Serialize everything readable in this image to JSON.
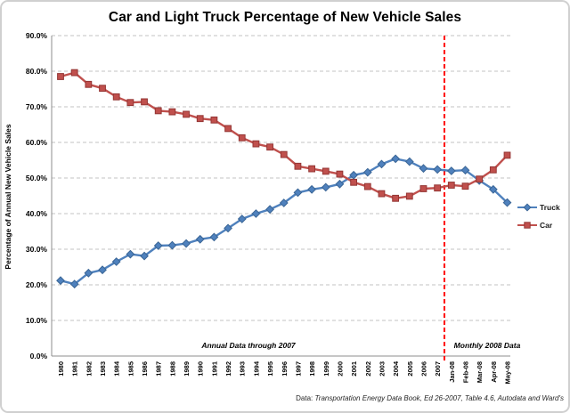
{
  "chart_title": "Car and Light Truck Percentage of New Vehicle Sales",
  "y_axis_title": "Percentage of Annual New Vehicle Sales",
  "annotations": {
    "annual": "Annual Data through 2007",
    "monthly": "Monthly 2008 Data"
  },
  "footer": {
    "prefix": "Data:",
    "source": "Transportation Energy Data Book, Ed 26-2007, Table 4.6,  Autodata and Ward's"
  },
  "colors": {
    "truck": "#4F81BD",
    "truck_border": "#3A6595",
    "car": "#C0504D",
    "car_border": "#943634",
    "separator": "#FF0000",
    "gridline": "#C3C3C3",
    "axis": "#8C8C8C",
    "text": "#000000"
  },
  "chart_data": {
    "type": "line",
    "title": "Car and Light Truck Percentage of New Vehicle Sales",
    "xlabel": "",
    "ylabel": "Percentage of Annual New Vehicle Sales",
    "ylim": [
      0,
      90
    ],
    "y_tick_labels": [
      "0.0%",
      "10.0%",
      "20.0%",
      "30.0%",
      "40.0%",
      "50.0%",
      "60.0%",
      "70.0%",
      "80.0%",
      "90.0%"
    ],
    "grid": "horizontal-dashed",
    "legend_position": "right-middle",
    "separator_after_category": "2007",
    "annotations": [
      "Annual Data through 2007",
      "Monthly 2008 Data"
    ],
    "categories": [
      "1980",
      "1981",
      "1982",
      "1983",
      "1984",
      "1985",
      "1986",
      "1987",
      "1988",
      "1989",
      "1990",
      "1991",
      "1992",
      "1993",
      "1994",
      "1995",
      "1996",
      "1997",
      "1998",
      "1999",
      "2000",
      "2001",
      "2002",
      "2003",
      "2004",
      "2005",
      "2006",
      "2007",
      "Jan-08",
      "Feb-08",
      "Mar-08",
      "Apr-08",
      "May-08"
    ],
    "series": [
      {
        "name": "Truck",
        "marker": "diamond",
        "color": "#4F81BD",
        "border": "#3A6595",
        "values": [
          21.2,
          20.2,
          23.3,
          24.2,
          26.5,
          28.6,
          28.1,
          31.0,
          31.1,
          31.6,
          32.8,
          33.4,
          35.9,
          38.5,
          40.0,
          41.2,
          43.0,
          45.9,
          46.8,
          47.4,
          48.3,
          50.8,
          51.6,
          53.9,
          55.4,
          54.6,
          52.7,
          52.4,
          52.0,
          52.2,
          49.3,
          46.8,
          43.1
        ]
      },
      {
        "name": "Car",
        "marker": "square",
        "color": "#C0504D",
        "border": "#943634",
        "values": [
          78.5,
          79.6,
          76.3,
          75.2,
          72.8,
          71.2,
          71.4,
          68.9,
          68.6,
          67.9,
          66.7,
          66.3,
          63.9,
          61.3,
          59.6,
          58.7,
          56.6,
          53.3,
          52.6,
          51.9,
          51.1,
          48.8,
          47.6,
          45.6,
          44.3,
          44.9,
          47.0,
          47.2,
          48.0,
          47.7,
          49.7,
          52.3,
          56.4
        ]
      }
    ]
  }
}
